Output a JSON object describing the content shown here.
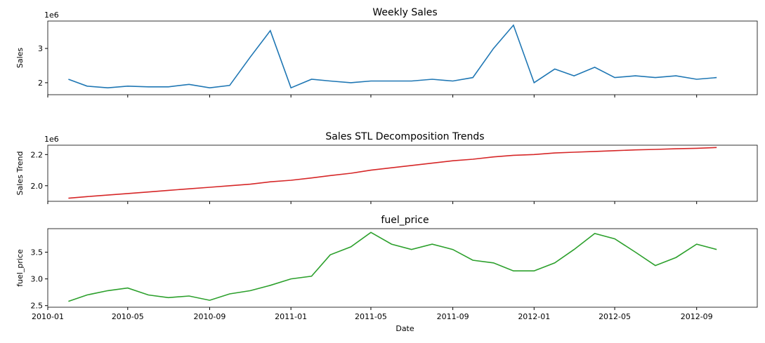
{
  "chart_data": [
    {
      "type": "line",
      "title": "Weekly Sales",
      "ylabel": "Sales",
      "offset_label": "1e6",
      "color": "#1f77b4",
      "x": [
        "2010-02",
        "2010-03",
        "2010-04",
        "2010-05",
        "2010-06",
        "2010-07",
        "2010-08",
        "2010-09",
        "2010-10",
        "2010-11",
        "2010-12",
        "2011-01",
        "2011-02",
        "2011-03",
        "2011-04",
        "2011-05",
        "2011-06",
        "2011-07",
        "2011-08",
        "2011-09",
        "2011-10",
        "2011-11",
        "2011-12",
        "2012-01",
        "2012-02",
        "2012-03",
        "2012-04",
        "2012-05",
        "2012-06",
        "2012-07",
        "2012-08",
        "2012-09",
        "2012-10"
      ],
      "values": [
        2.1,
        1.9,
        1.85,
        1.9,
        1.88,
        1.88,
        1.95,
        1.85,
        1.92,
        2.75,
        3.52,
        1.85,
        2.1,
        2.05,
        2.0,
        2.05,
        2.05,
        2.05,
        2.1,
        2.05,
        2.15,
        3.0,
        3.68,
        2.0,
        2.4,
        2.2,
        2.45,
        2.15,
        2.2,
        2.15,
        2.2,
        2.1,
        2.15
      ],
      "xlim": [
        "2010-01",
        "2012-12"
      ],
      "xticks": [
        "2010-01",
        "2010-05",
        "2010-09",
        "2011-01",
        "2011-05",
        "2011-09",
        "2012-01",
        "2012-05",
        "2012-09"
      ],
      "ylim": [
        1.65,
        3.8
      ],
      "yticks": [
        2,
        3
      ]
    },
    {
      "type": "line",
      "title": "Sales STL Decomposition Trends",
      "ylabel": "Sales Trend",
      "offset_label": "1e6",
      "color": "#d62728",
      "x": [
        "2010-02",
        "2010-03",
        "2010-04",
        "2010-05",
        "2010-06",
        "2010-07",
        "2010-08",
        "2010-09",
        "2010-10",
        "2010-11",
        "2010-12",
        "2011-01",
        "2011-02",
        "2011-03",
        "2011-04",
        "2011-05",
        "2011-06",
        "2011-07",
        "2011-08",
        "2011-09",
        "2011-10",
        "2011-11",
        "2011-12",
        "2012-01",
        "2012-02",
        "2012-03",
        "2012-04",
        "2012-05",
        "2012-06",
        "2012-07",
        "2012-08",
        "2012-09",
        "2012-10"
      ],
      "values": [
        1.92,
        1.93,
        1.94,
        1.95,
        1.96,
        1.97,
        1.98,
        1.99,
        2.0,
        2.01,
        2.025,
        2.035,
        2.05,
        2.065,
        2.08,
        2.1,
        2.115,
        2.13,
        2.145,
        2.16,
        2.17,
        2.185,
        2.195,
        2.2,
        2.21,
        2.215,
        2.22,
        2.225,
        2.23,
        2.233,
        2.237,
        2.24,
        2.245
      ],
      "xlim": [
        "2010-01",
        "2012-12"
      ],
      "xticks": [
        "2010-01",
        "2010-05",
        "2010-09",
        "2011-01",
        "2011-05",
        "2011-09",
        "2012-01",
        "2012-05",
        "2012-09"
      ],
      "ylim": [
        1.9,
        2.26
      ],
      "yticks": [
        {
          "value": 2.0,
          "label": "2.0"
        },
        2.2
      ]
    },
    {
      "type": "line",
      "title": "fuel_price",
      "ylabel": "fuel_price",
      "xlabel": "Date",
      "color": "#2ca02c",
      "x": [
        "2010-02",
        "2010-03",
        "2010-04",
        "2010-05",
        "2010-06",
        "2010-07",
        "2010-08",
        "2010-09",
        "2010-10",
        "2010-11",
        "2010-12",
        "2011-01",
        "2011-02",
        "2011-03",
        "2011-04",
        "2011-05",
        "2011-06",
        "2011-07",
        "2011-08",
        "2011-09",
        "2011-10",
        "2011-11",
        "2011-12",
        "2012-01",
        "2012-02",
        "2012-03",
        "2012-04",
        "2012-05",
        "2012-06",
        "2012-07",
        "2012-08",
        "2012-09",
        "2012-10"
      ],
      "values": [
        2.58,
        2.7,
        2.78,
        2.83,
        2.7,
        2.65,
        2.68,
        2.6,
        2.72,
        2.78,
        2.88,
        3.0,
        3.05,
        3.45,
        3.6,
        3.87,
        3.65,
        3.55,
        3.65,
        3.55,
        3.35,
        3.3,
        3.15,
        3.15,
        3.3,
        3.55,
        3.85,
        3.75,
        3.5,
        3.25,
        3.4,
        3.65,
        3.55
      ],
      "xlim": [
        "2010-01",
        "2012-12"
      ],
      "xticks": [
        "2010-01",
        "2010-05",
        "2010-09",
        "2011-01",
        "2011-05",
        "2011-09",
        "2012-01",
        "2012-05",
        "2012-09"
      ],
      "ylim": [
        2.47,
        3.94
      ],
      "yticks": [
        2.5,
        {
          "value": 3.0,
          "label": "3.0"
        },
        3.5
      ]
    }
  ]
}
